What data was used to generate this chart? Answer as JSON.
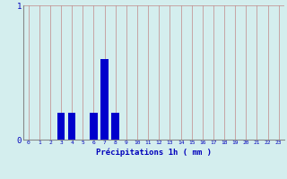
{
  "hours": [
    0,
    1,
    2,
    3,
    4,
    5,
    6,
    7,
    8,
    9,
    10,
    11,
    12,
    13,
    14,
    15,
    16,
    17,
    18,
    19,
    20,
    21,
    22,
    23
  ],
  "values": [
    0,
    0,
    0,
    0.2,
    0.2,
    0,
    0.2,
    0.6,
    0.2,
    0,
    0,
    0,
    0,
    0,
    0,
    0,
    0,
    0,
    0,
    0,
    0,
    0,
    0,
    0
  ],
  "bar_color": "#0000cc",
  "background_color": "#d4eeee",
  "grid_color": "#c08888",
  "xlabel": "Précipitations 1h ( mm )",
  "xlabel_color": "#0000bb",
  "tick_color": "#0000bb",
  "axis_color": "#888888",
  "ylim": [
    0,
    1
  ],
  "xlim": [
    -0.5,
    23.5
  ],
  "yticks": [
    0,
    1
  ],
  "xticks": [
    0,
    1,
    2,
    3,
    4,
    5,
    6,
    7,
    8,
    9,
    10,
    11,
    12,
    13,
    14,
    15,
    16,
    17,
    18,
    19,
    20,
    21,
    22,
    23
  ]
}
